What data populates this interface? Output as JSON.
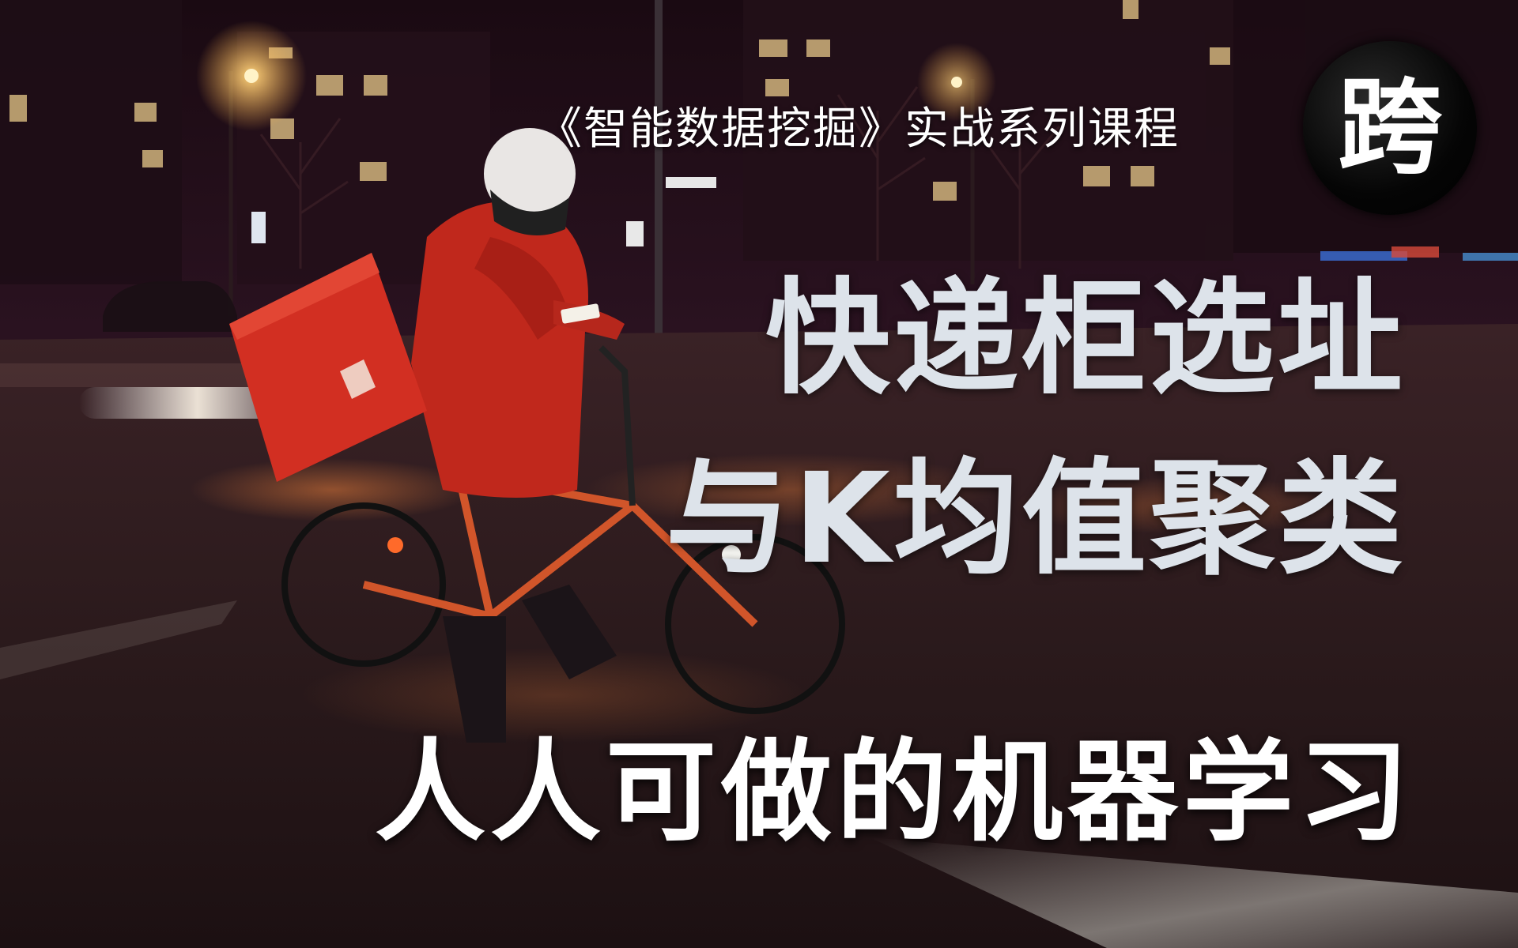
{
  "subtitle": "《智能数据挖掘》实战系列课程",
  "badge": "跨",
  "title_line1": "快递柜选址",
  "title_line2": "与K均值聚类",
  "tagline": "人人可做的机器学习",
  "colors": {
    "title": "#dde3ea",
    "tagline": "#ffffff",
    "jacket": "#c0281c",
    "badge": "#000000"
  }
}
